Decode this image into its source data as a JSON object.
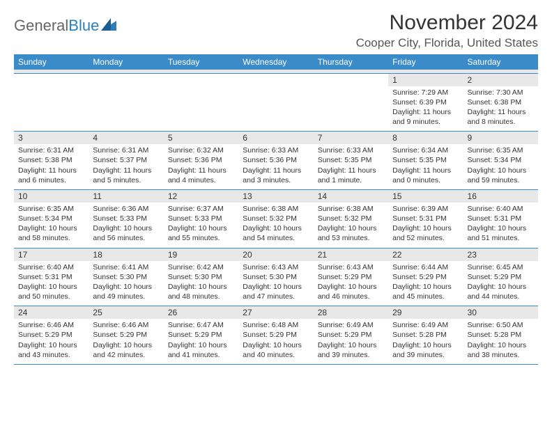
{
  "logo": {
    "part1": "General",
    "part2": "Blue"
  },
  "title": "November 2024",
  "location": "Cooper City, Florida, United States",
  "colors": {
    "header_bg": "#3b8bc9",
    "header_text": "#ffffff",
    "daynum_bg": "#e8e8e8",
    "border": "#3b8bc9",
    "text": "#333333",
    "logo_gray": "#666666",
    "logo_blue": "#2a7fbf"
  },
  "days_of_week": [
    "Sunday",
    "Monday",
    "Tuesday",
    "Wednesday",
    "Thursday",
    "Friday",
    "Saturday"
  ],
  "weeks": [
    [
      {
        "n": "",
        "lines": []
      },
      {
        "n": "",
        "lines": []
      },
      {
        "n": "",
        "lines": []
      },
      {
        "n": "",
        "lines": []
      },
      {
        "n": "",
        "lines": []
      },
      {
        "n": "1",
        "lines": [
          "Sunrise: 7:29 AM",
          "Sunset: 6:39 PM",
          "Daylight: 11 hours",
          "and 9 minutes."
        ]
      },
      {
        "n": "2",
        "lines": [
          "Sunrise: 7:30 AM",
          "Sunset: 6:38 PM",
          "Daylight: 11 hours",
          "and 8 minutes."
        ]
      }
    ],
    [
      {
        "n": "3",
        "lines": [
          "Sunrise: 6:31 AM",
          "Sunset: 5:38 PM",
          "Daylight: 11 hours",
          "and 6 minutes."
        ]
      },
      {
        "n": "4",
        "lines": [
          "Sunrise: 6:31 AM",
          "Sunset: 5:37 PM",
          "Daylight: 11 hours",
          "and 5 minutes."
        ]
      },
      {
        "n": "5",
        "lines": [
          "Sunrise: 6:32 AM",
          "Sunset: 5:36 PM",
          "Daylight: 11 hours",
          "and 4 minutes."
        ]
      },
      {
        "n": "6",
        "lines": [
          "Sunrise: 6:33 AM",
          "Sunset: 5:36 PM",
          "Daylight: 11 hours",
          "and 3 minutes."
        ]
      },
      {
        "n": "7",
        "lines": [
          "Sunrise: 6:33 AM",
          "Sunset: 5:35 PM",
          "Daylight: 11 hours",
          "and 1 minute."
        ]
      },
      {
        "n": "8",
        "lines": [
          "Sunrise: 6:34 AM",
          "Sunset: 5:35 PM",
          "Daylight: 11 hours",
          "and 0 minutes."
        ]
      },
      {
        "n": "9",
        "lines": [
          "Sunrise: 6:35 AM",
          "Sunset: 5:34 PM",
          "Daylight: 10 hours",
          "and 59 minutes."
        ]
      }
    ],
    [
      {
        "n": "10",
        "lines": [
          "Sunrise: 6:35 AM",
          "Sunset: 5:34 PM",
          "Daylight: 10 hours",
          "and 58 minutes."
        ]
      },
      {
        "n": "11",
        "lines": [
          "Sunrise: 6:36 AM",
          "Sunset: 5:33 PM",
          "Daylight: 10 hours",
          "and 56 minutes."
        ]
      },
      {
        "n": "12",
        "lines": [
          "Sunrise: 6:37 AM",
          "Sunset: 5:33 PM",
          "Daylight: 10 hours",
          "and 55 minutes."
        ]
      },
      {
        "n": "13",
        "lines": [
          "Sunrise: 6:38 AM",
          "Sunset: 5:32 PM",
          "Daylight: 10 hours",
          "and 54 minutes."
        ]
      },
      {
        "n": "14",
        "lines": [
          "Sunrise: 6:38 AM",
          "Sunset: 5:32 PM",
          "Daylight: 10 hours",
          "and 53 minutes."
        ]
      },
      {
        "n": "15",
        "lines": [
          "Sunrise: 6:39 AM",
          "Sunset: 5:31 PM",
          "Daylight: 10 hours",
          "and 52 minutes."
        ]
      },
      {
        "n": "16",
        "lines": [
          "Sunrise: 6:40 AM",
          "Sunset: 5:31 PM",
          "Daylight: 10 hours",
          "and 51 minutes."
        ]
      }
    ],
    [
      {
        "n": "17",
        "lines": [
          "Sunrise: 6:40 AM",
          "Sunset: 5:31 PM",
          "Daylight: 10 hours",
          "and 50 minutes."
        ]
      },
      {
        "n": "18",
        "lines": [
          "Sunrise: 6:41 AM",
          "Sunset: 5:30 PM",
          "Daylight: 10 hours",
          "and 49 minutes."
        ]
      },
      {
        "n": "19",
        "lines": [
          "Sunrise: 6:42 AM",
          "Sunset: 5:30 PM",
          "Daylight: 10 hours",
          "and 48 minutes."
        ]
      },
      {
        "n": "20",
        "lines": [
          "Sunrise: 6:43 AM",
          "Sunset: 5:30 PM",
          "Daylight: 10 hours",
          "and 47 minutes."
        ]
      },
      {
        "n": "21",
        "lines": [
          "Sunrise: 6:43 AM",
          "Sunset: 5:29 PM",
          "Daylight: 10 hours",
          "and 46 minutes."
        ]
      },
      {
        "n": "22",
        "lines": [
          "Sunrise: 6:44 AM",
          "Sunset: 5:29 PM",
          "Daylight: 10 hours",
          "and 45 minutes."
        ]
      },
      {
        "n": "23",
        "lines": [
          "Sunrise: 6:45 AM",
          "Sunset: 5:29 PM",
          "Daylight: 10 hours",
          "and 44 minutes."
        ]
      }
    ],
    [
      {
        "n": "24",
        "lines": [
          "Sunrise: 6:46 AM",
          "Sunset: 5:29 PM",
          "Daylight: 10 hours",
          "and 43 minutes."
        ]
      },
      {
        "n": "25",
        "lines": [
          "Sunrise: 6:46 AM",
          "Sunset: 5:29 PM",
          "Daylight: 10 hours",
          "and 42 minutes."
        ]
      },
      {
        "n": "26",
        "lines": [
          "Sunrise: 6:47 AM",
          "Sunset: 5:29 PM",
          "Daylight: 10 hours",
          "and 41 minutes."
        ]
      },
      {
        "n": "27",
        "lines": [
          "Sunrise: 6:48 AM",
          "Sunset: 5:29 PM",
          "Daylight: 10 hours",
          "and 40 minutes."
        ]
      },
      {
        "n": "28",
        "lines": [
          "Sunrise: 6:49 AM",
          "Sunset: 5:29 PM",
          "Daylight: 10 hours",
          "and 39 minutes."
        ]
      },
      {
        "n": "29",
        "lines": [
          "Sunrise: 6:49 AM",
          "Sunset: 5:28 PM",
          "Daylight: 10 hours",
          "and 39 minutes."
        ]
      },
      {
        "n": "30",
        "lines": [
          "Sunrise: 6:50 AM",
          "Sunset: 5:28 PM",
          "Daylight: 10 hours",
          "and 38 minutes."
        ]
      }
    ]
  ]
}
